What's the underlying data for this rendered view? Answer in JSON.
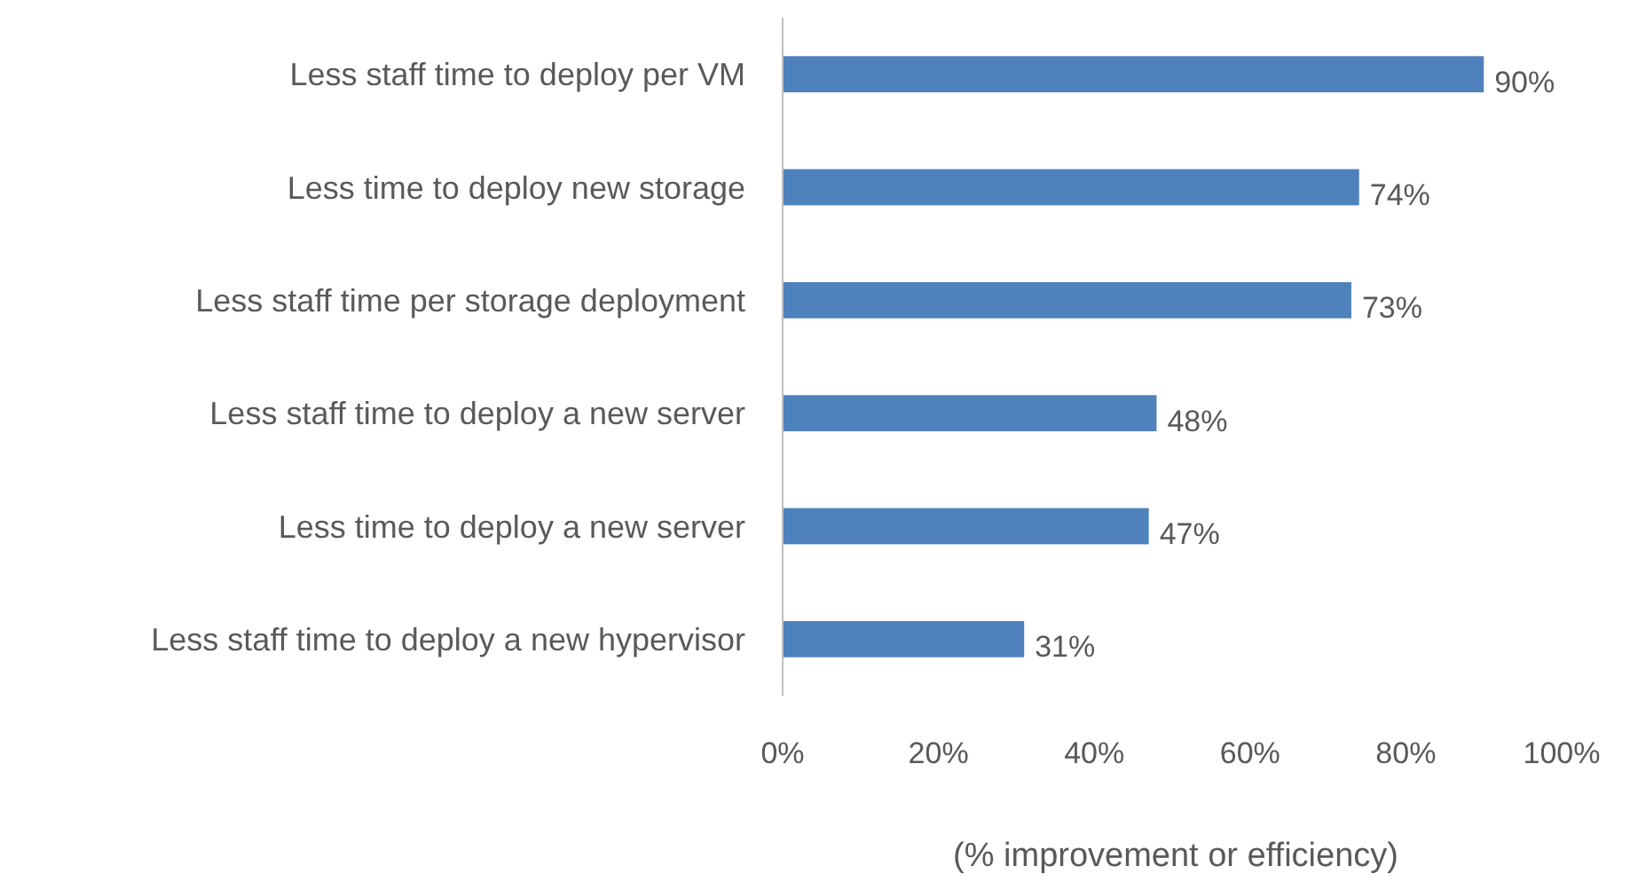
{
  "chart_data": {
    "type": "bar",
    "orientation": "horizontal",
    "xlabel": "(% improvement or efficiency)",
    "categories": [
      "Less staff time to deploy per VM",
      "Less time to deploy new storage",
      "Less staff time per storage deployment",
      "Less staff time to deploy a new server",
      "Less time to deploy a new server",
      "Less staff time to deploy a new hypervisor"
    ],
    "values": [
      90,
      74,
      73,
      48,
      47,
      31
    ],
    "color": "#4f81bd",
    "value_labels": [
      "90%",
      "74%",
      "73%",
      "48%",
      "47%",
      "31%"
    ],
    "xlim": [
      0,
      100
    ],
    "xticks": [
      {
        "value": 0,
        "label": "0%"
      },
      {
        "value": 20,
        "label": "20%"
      },
      {
        "value": 40,
        "label": "40%"
      },
      {
        "value": 60,
        "label": "60%"
      },
      {
        "value": 80,
        "label": "80%"
      },
      {
        "value": 100,
        "label": "100%"
      }
    ],
    "grid": false
  }
}
